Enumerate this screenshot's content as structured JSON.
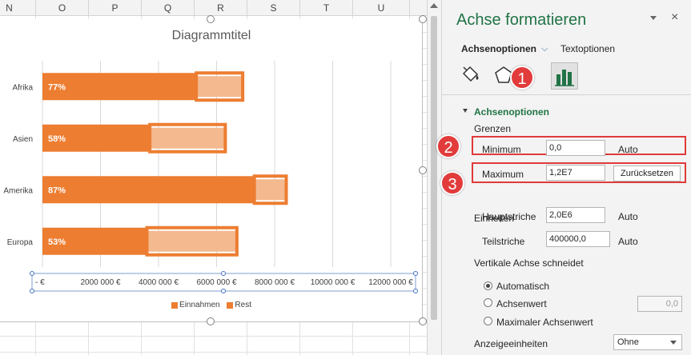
{
  "sheet": {
    "columns": [
      {
        "name": "N",
        "w": 66
      },
      {
        "name": "O",
        "w": 66
      },
      {
        "name": "P",
        "w": 66
      },
      {
        "name": "Q",
        "w": 66
      },
      {
        "name": "R",
        "w": 66
      },
      {
        "name": "S",
        "w": 66
      },
      {
        "name": "T",
        "w": 66
      },
      {
        "name": "U",
        "w": 71
      }
    ]
  },
  "chart_data": {
    "type": "bar",
    "title": "Diagrammtitel",
    "categories": [
      "Afrika",
      "Asien",
      "Amerika",
      "Europa"
    ],
    "series": [
      {
        "name": "Einnahmen",
        "values": [
          5300000,
          3700000,
          7300000,
          3600000
        ],
        "color": "#ed7d31"
      },
      {
        "name": "Rest",
        "values": [
          1600000,
          2600000,
          1100000,
          3100000
        ],
        "color": "#f4b98f"
      }
    ],
    "data_labels": [
      "77%",
      "58%",
      "87%",
      "53%"
    ],
    "x_ticks": [
      "-  €",
      "2000 000 €",
      "4000 000 €",
      "6000 000 €",
      "8000 000 €",
      "10000 000 €",
      "12000 000 €"
    ],
    "xlim": [
      0,
      12000000
    ],
    "grid": true,
    "legend": "bottom",
    "stacked": true
  },
  "pane": {
    "title": "Achse formatieren",
    "close_glyph": "×",
    "tab_axis": "Achsenoptionen",
    "tab_axis_chevron": "⌵",
    "tab_text": "Textoptionen",
    "section": "Achsenoptionen",
    "grenzen": "Grenzen",
    "minimum_label": "Minimum",
    "minimum_value": "0,0",
    "minimum_mode": "Auto",
    "maximum_label": "Maximum",
    "maximum_value": "1,2E7",
    "maximum_mode": "Zurücksetzen",
    "einheiten": "Einheiten",
    "haupt_label": "Hauptstriche",
    "haupt_value": "2,0E6",
    "haupt_mode": "Auto",
    "teil_label": "Teilstriche",
    "teil_value": "400000,0",
    "teil_mode": "Auto",
    "vert_label": "Vertikale Achse schneidet",
    "radio_auto": "Automatisch",
    "radio_value": "Achsenwert",
    "radio_value_input": "0,0",
    "radio_max": "Maximaler Achsenwert",
    "anzeige_label": "Anzeigeeinheiten",
    "anzeige_value": "Ohne"
  },
  "badges": {
    "one": "1",
    "two": "2",
    "three": "3"
  },
  "colors": {
    "accent": "#217346",
    "bar": "#ed7d31",
    "rest": "#f4b98f",
    "highlight": "#e03a3a"
  }
}
